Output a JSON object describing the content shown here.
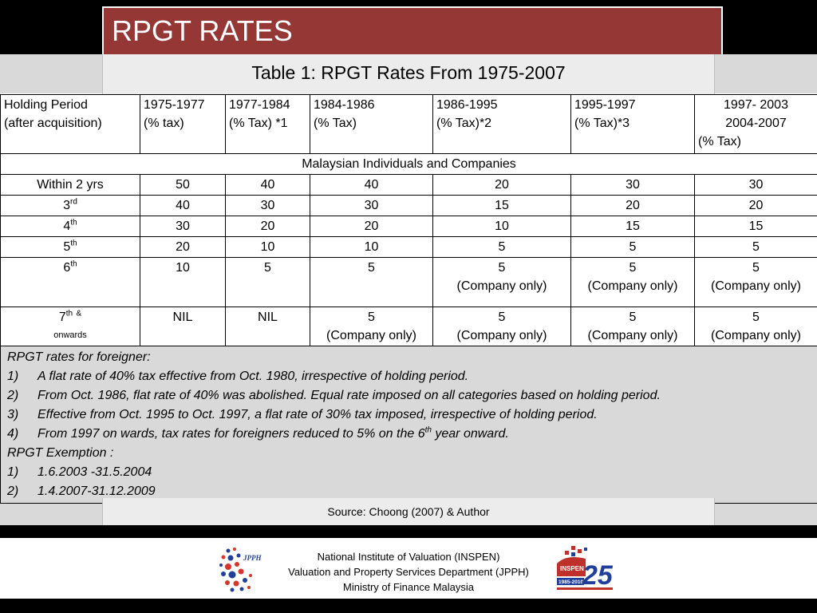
{
  "slide": {
    "title": "RPGT RATES"
  },
  "table": {
    "caption": "Table 1: RPGT Rates From 1975-2007",
    "headers": [
      [
        "Holding Period",
        "(after acquisition)"
      ],
      [
        "1975-1977",
        "(% tax)"
      ],
      [
        "1977-1984",
        "(% Tax) *1"
      ],
      [
        "1984-1986",
        "(% Tax)"
      ],
      [
        "1986-1995",
        "(% Tax)*2"
      ],
      [
        "1995-1997",
        "(% Tax)*3"
      ],
      [
        "1997- 2003",
        "2004-2007",
        "(% Tax)"
      ]
    ],
    "section_label": "Malaysian Individuals and Companies",
    "rows": [
      {
        "period": "Within 2 yrs",
        "suffix": "",
        "values": [
          "50",
          "40",
          "40",
          "20",
          "30",
          "30"
        ]
      },
      {
        "period": "3",
        "suffix": "rd",
        "values": [
          "40",
          "30",
          "30",
          "15",
          "20",
          "20"
        ]
      },
      {
        "period": "4",
        "suffix": "th",
        "values": [
          "30",
          "20",
          "20",
          "10",
          "15",
          "15"
        ]
      },
      {
        "period": "5",
        "suffix": "th",
        "values": [
          "20",
          "10",
          "10",
          "5",
          "5",
          "5"
        ]
      }
    ],
    "row6": {
      "period": "6",
      "suffix": "th",
      "values": [
        "10",
        "5",
        "5",
        "5",
        "5",
        "5"
      ],
      "note": "(Company only)"
    },
    "row7": {
      "period": "7",
      "suffix": "th",
      "amp": "&",
      "onwards": "onwards",
      "values": [
        "NIL",
        "NIL",
        "5",
        "5",
        "5",
        "5"
      ],
      "note": "(Company only)"
    },
    "notes": {
      "foreigner_title": "RPGT rates for foreigner:",
      "foreigner_items": [
        {
          "num": "1)",
          "text": "A flat rate of 40% tax effective from Oct. 1980, irrespective of holding period."
        },
        {
          "num": "2)",
          "text": "From Oct. 1986, flat rate of 40% was abolished. Equal rate imposed on all categories based on holding period."
        },
        {
          "num": "3)",
          "text": "Effective from Oct. 1995 to Oct. 1997, a flat rate of 30% tax imposed, irrespective of holding period."
        },
        {
          "num": "4)",
          "text_a": "From 1997 on wards, tax rates for foreigners reduced to 5% on the 6",
          "sup": "th",
          "text_b": " year onward."
        }
      ],
      "exemption_title": "RPGT Exemption :",
      "exemption_items": [
        {
          "num": "1)",
          "text": "1.6.2003 -31.5.2004"
        },
        {
          "num": "2)",
          "text": "1.4.2007-31.12.2009"
        }
      ]
    },
    "source": "Source: Choong (2007) & Author"
  },
  "footer": {
    "lines": [
      "National Institute of Valuation (INSPEN)",
      "Valuation and Property Services Department (JPPH)",
      "Ministry of Finance Malaysia"
    ],
    "logo_left_text": "JPPH",
    "logo_right_text": "INSPEN",
    "logo_right_years": "1985-2010",
    "logo_right_number": "25"
  },
  "colors": {
    "title_bg": "#953735",
    "panel_bg": "#d9d9d9"
  }
}
